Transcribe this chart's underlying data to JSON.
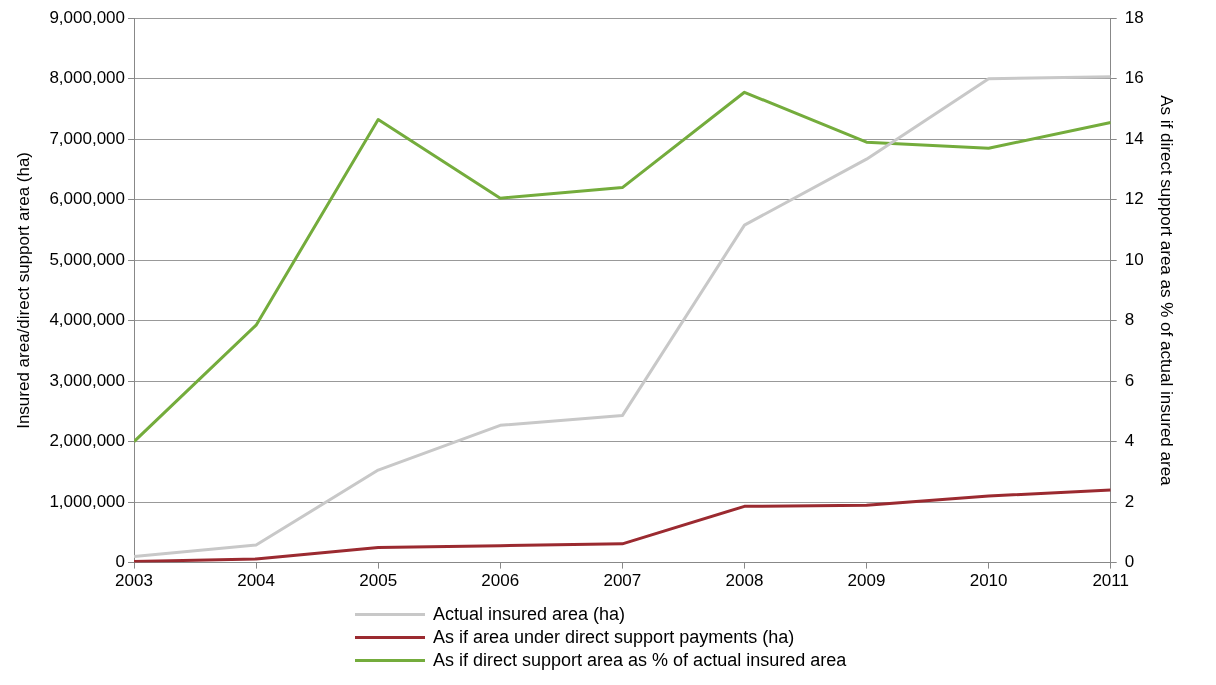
{
  "chart_data": {
    "type": "line",
    "x": [
      2003,
      2004,
      2005,
      2006,
      2007,
      2008,
      2009,
      2010,
      2011
    ],
    "xlim": [
      2003,
      2011
    ],
    "xticks": [
      2003,
      2004,
      2005,
      2006,
      2007,
      2008,
      2009,
      2010,
      2011
    ],
    "ylabel": "Insured area/direct support area (ha)",
    "y2label": "As if direct support area as % of actual insured area",
    "ylim": [
      0,
      9000000
    ],
    "yticks": [
      {
        "value": 0,
        "label": "0"
      },
      {
        "value": 1000000,
        "label": "1,000,000"
      },
      {
        "value": 2000000,
        "label": "2,000,000"
      },
      {
        "value": 3000000,
        "label": "3,000,000"
      },
      {
        "value": 4000000,
        "label": "4,000,000"
      },
      {
        "value": 5000000,
        "label": "5,000,000"
      },
      {
        "value": 6000000,
        "label": "6,000,000"
      },
      {
        "value": 7000000,
        "label": "7,000,000"
      },
      {
        "value": 8000000,
        "label": "8,000,000"
      },
      {
        "value": 9000000,
        "label": "9,000,000"
      }
    ],
    "y2lim": [
      0,
      18
    ],
    "y2ticks": [
      0,
      2,
      4,
      6,
      8,
      10,
      12,
      14,
      16,
      18
    ],
    "grid": "y",
    "legend": "bottom",
    "marker": "none",
    "line_style": "solid",
    "series": [
      {
        "name": "Actual insured area (ha)",
        "color": "#c8c8c8",
        "values": [
          100000,
          290000,
          1530000,
          2270000,
          2430000,
          5580000,
          6670000,
          8000000,
          8030000
        ]
      },
      {
        "name": "As if area under direct support payments (ha)",
        "color": "#9b2a30",
        "values": [
          20000,
          60000,
          250000,
          280000,
          310000,
          930000,
          950000,
          1100000,
          1200000
        ]
      },
      {
        "name": "As if direct support area as % of actual insured area",
        "color": "#74ac3c",
        "axis": "y2",
        "values": [
          4.0,
          7.85,
          14.65,
          12.05,
          12.4,
          15.55,
          13.9,
          13.7,
          14.55
        ]
      }
    ]
  }
}
